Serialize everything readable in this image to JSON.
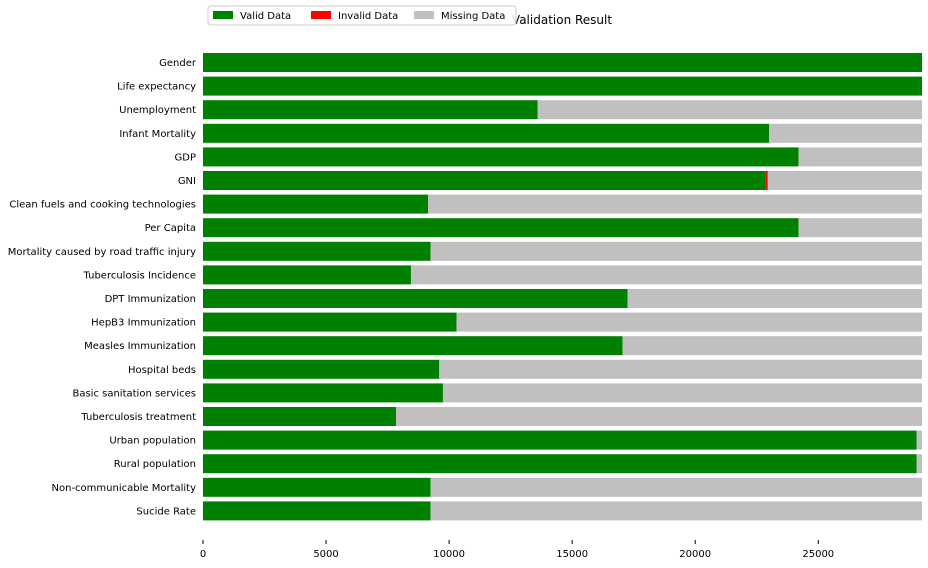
{
  "chart_data": {
    "type": "bar",
    "orientation": "horizontal",
    "stacked": true,
    "title": "Validation Result",
    "xlabel": "",
    "ylabel": "",
    "xlim": [
      0,
      29215
    ],
    "xticks": [
      0,
      5000,
      10000,
      15000,
      20000,
      25000
    ],
    "grid": false,
    "legend_placement": "top-left",
    "colors": {
      "Valid Data": "#008000",
      "Invalid Data": "#ff0000",
      "Missing Data": "#c0c0c0"
    },
    "categories": [
      "Gender",
      "Life expectancy",
      "Unemployment",
      "Infant Mortality",
      "GDP",
      "GNI",
      "Clean fuels and cooking technologies",
      "Per Capita",
      "Mortality caused by road traffic injury",
      "Tuberculosis Incidence",
      "DPT Immunization",
      "HepB3 Immunization",
      "Measles Immunization",
      "Hospital beds",
      "Basic sanitation services",
      "Tuberculosis treatment",
      "Urban population",
      "Rural population",
      "Non-communicable Mortality",
      "Sucide Rate"
    ],
    "series": [
      {
        "name": "Valid Data",
        "values": [
          29215,
          29215,
          13600,
          23000,
          24200,
          22850,
          9150,
          24200,
          9250,
          8450,
          17250,
          10300,
          17050,
          9600,
          9750,
          7850,
          29000,
          29000,
          9250,
          9250
        ]
      },
      {
        "name": "Invalid Data",
        "values": [
          0,
          0,
          0,
          0,
          0,
          100,
          0,
          0,
          0,
          0,
          0,
          0,
          0,
          0,
          0,
          0,
          0,
          0,
          0,
          0
        ]
      },
      {
        "name": "Missing Data",
        "values": [
          0,
          0,
          15615,
          6215,
          5015,
          6265,
          20065,
          5015,
          19965,
          20765,
          11965,
          18915,
          12165,
          19615,
          19465,
          21365,
          215,
          215,
          19965,
          19965
        ]
      }
    ]
  }
}
